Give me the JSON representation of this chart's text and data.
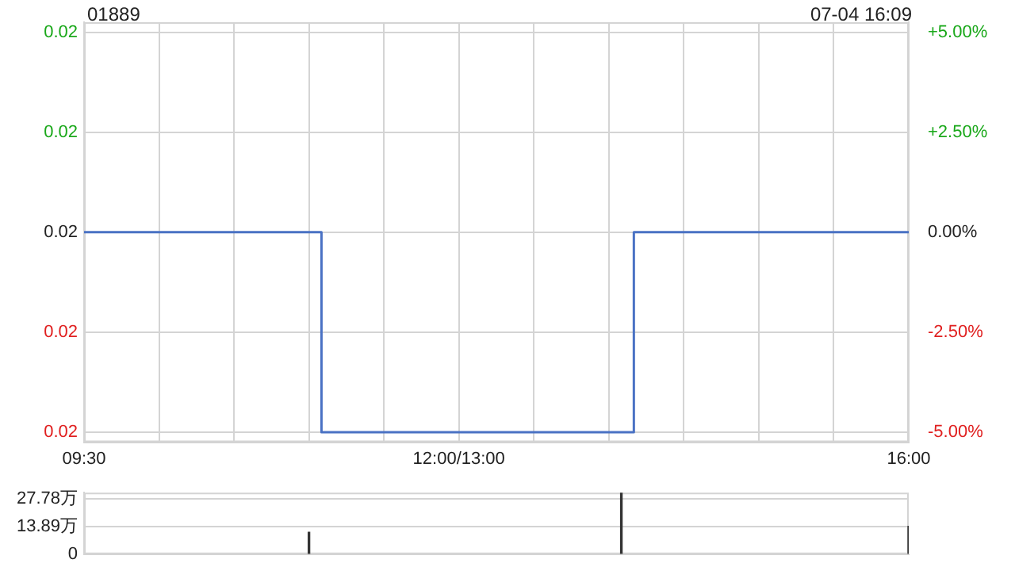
{
  "chart_data": [
    {
      "type": "step",
      "title": "01889",
      "annotations": [
        "07-04 16:09"
      ],
      "categories": [
        "09:30",
        null,
        null,
        null,
        null,
        null,
        null,
        null,
        null,
        null,
        null,
        null,
        null,
        null,
        null,
        null,
        null,
        null,
        null,
        null,
        null,
        null,
        null,
        null,
        null,
        null,
        null,
        null,
        null,
        null,
        "12:00/13:00",
        null,
        null,
        null,
        null,
        null,
        null,
        null,
        null,
        null,
        null,
        null,
        null,
        null,
        null,
        null,
        null,
        null,
        null,
        null,
        null,
        null,
        null,
        null,
        null,
        null,
        null,
        null,
        null,
        null,
        null,
        null,
        null,
        null,
        null,
        null,
        "16:00"
      ],
      "series": [
        {
          "color": "#4a72c4",
          "axis": "y2",
          "values": [
            0,
            0,
            0,
            0,
            0,
            0,
            0,
            0,
            0,
            0,
            0,
            0,
            0,
            0,
            0,
            0,
            0,
            0,
            0,
            -5,
            -5,
            -5,
            -5,
            -5,
            -5,
            -5,
            -5,
            -5,
            -5,
            -5,
            -5,
            -5,
            -5,
            -5,
            -5,
            -5,
            -5,
            -5,
            -5,
            -5,
            -5,
            -5,
            -5,
            -5,
            0,
            0,
            0,
            0,
            0,
            0,
            0,
            0,
            0,
            0,
            0,
            0,
            0,
            0,
            0,
            0,
            0,
            0,
            0,
            0,
            0,
            0,
            0
          ]
        }
      ],
      "ylim": [
        0.01895,
        0.02105
      ],
      "yticks": [
        {
          "value": 0.019,
          "label": "0.02"
        },
        {
          "value": 0.0195,
          "label": "0.02"
        },
        {
          "value": 0.02,
          "label": "0.02"
        },
        {
          "value": 0.0205,
          "label": "0.02"
        },
        {
          "value": 0.021,
          "label": "0.02"
        }
      ],
      "y2lim": [
        -5.25,
        5.25
      ],
      "y2ticks": [
        {
          "value": -5,
          "label": "-5.00%"
        },
        {
          "value": -2.5,
          "label": "-2.50%"
        },
        {
          "value": 0,
          "label": "0.00%"
        },
        {
          "value": 2.5,
          "label": "+2.50%"
        },
        {
          "value": 5,
          "label": "+5.00%"
        }
      ],
      "grid": true,
      "line_style": "solid",
      "marker": "none"
    },
    {
      "type": "bar",
      "categories": [
        null,
        null,
        null,
        null,
        null,
        null,
        null,
        null,
        null,
        null,
        null,
        null,
        null,
        null,
        null,
        null,
        null,
        null,
        null,
        null,
        null,
        null,
        null,
        null,
        null,
        null,
        null,
        null,
        null,
        null,
        null,
        null,
        null,
        null,
        null,
        null,
        null,
        null,
        null,
        null,
        null,
        null,
        null,
        null,
        null,
        null,
        null,
        null,
        null,
        null,
        null,
        null,
        null,
        null,
        null,
        null,
        null,
        null,
        null,
        null,
        null,
        null,
        null,
        null,
        null,
        null,
        null
      ],
      "values": [
        null,
        null,
        null,
        null,
        null,
        null,
        null,
        null,
        null,
        null,
        null,
        null,
        null,
        null,
        null,
        null,
        null,
        null,
        11,
        null,
        null,
        null,
        null,
        null,
        null,
        null,
        null,
        null,
        null,
        null,
        null,
        null,
        null,
        null,
        null,
        null,
        null,
        null,
        null,
        null,
        null,
        null,
        null,
        31,
        null,
        null,
        null,
        null,
        null,
        null,
        null,
        null,
        null,
        null,
        null,
        null,
        null,
        null,
        null,
        null,
        null,
        null,
        null,
        null,
        null,
        null,
        14
      ],
      "color": "#333333",
      "ylim": [
        0,
        31
      ],
      "yticks": [
        0,
        {
          "value": 13.89,
          "label": "13.89万"
        },
        {
          "value": 27.78,
          "label": "27.78万"
        }
      ],
      "tick_labels": "y",
      "grid": "y"
    }
  ]
}
